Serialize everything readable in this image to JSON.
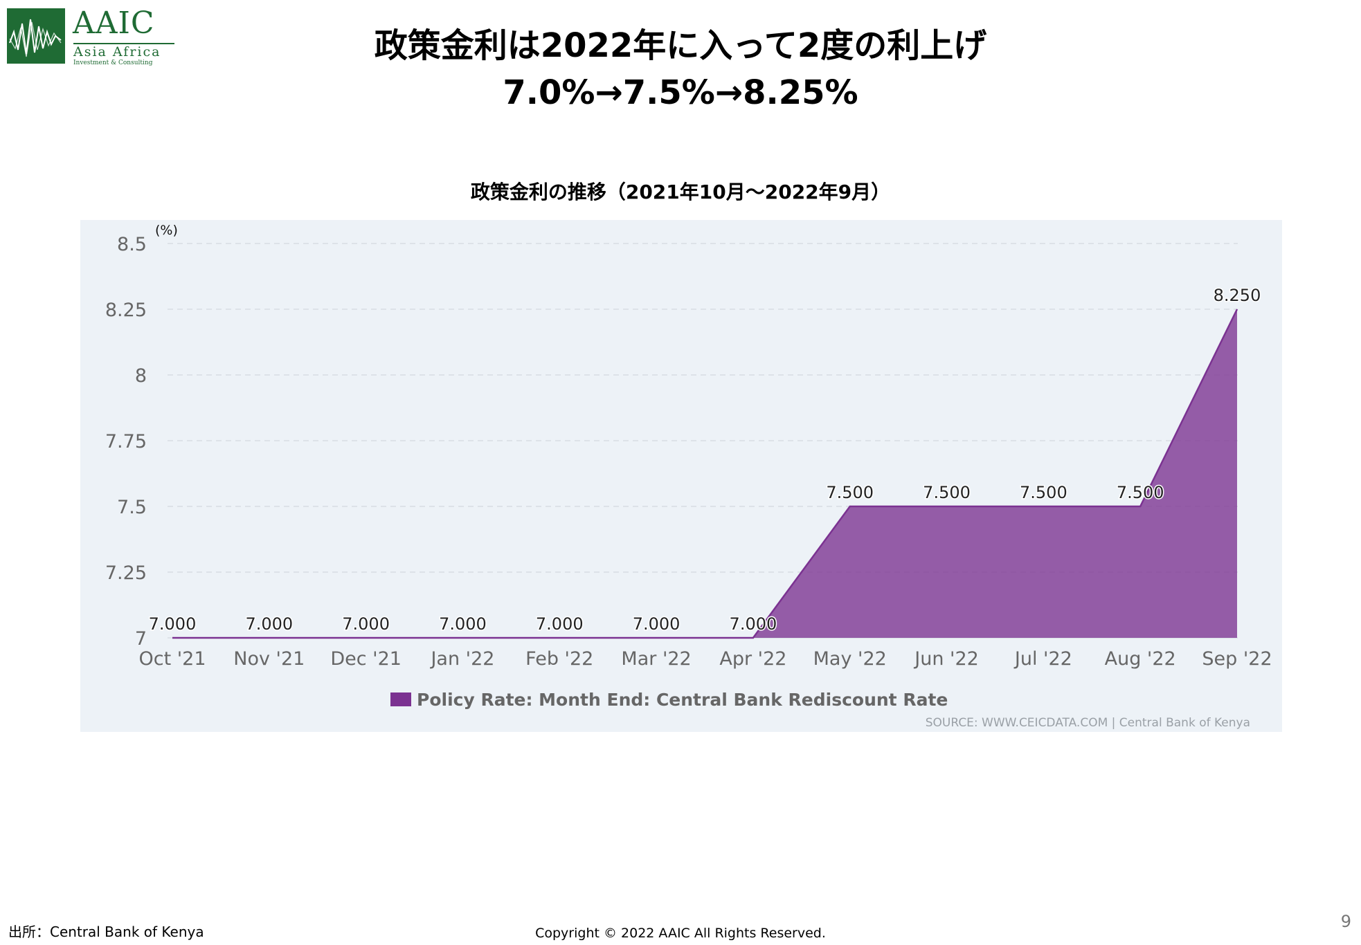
{
  "logo": {
    "name": "AAIC",
    "line1": "Asia Africa",
    "line2": "Investment & Consulting",
    "brand_color": "#1f6b34"
  },
  "slide": {
    "title": "政策金利は2022年に入って2度の利上げ",
    "subtitle": "7.0%→7.5%→8.25%"
  },
  "chart_data": {
    "type": "area",
    "title": "政策金利の推移（2021年10月～2022年9月）",
    "y_unit": "(%)",
    "categories": [
      "Oct '21",
      "Nov '21",
      "Dec '21",
      "Jan '22",
      "Feb '22",
      "Mar '22",
      "Apr '22",
      "May '22",
      "Jun '22",
      "Jul '22",
      "Aug '22",
      "Sep '22"
    ],
    "series": [
      {
        "name": "Policy Rate: Month End: Central Bank Rediscount Rate",
        "values": [
          7.0,
          7.0,
          7.0,
          7.0,
          7.0,
          7.0,
          7.0,
          7.5,
          7.5,
          7.5,
          7.5,
          8.25
        ],
        "labels": [
          "7.000",
          "7.000",
          "7.000",
          "7.000",
          "7.000",
          "7.000",
          "7.000",
          "7.500",
          "7.500",
          "7.500",
          "7.500",
          "8.250"
        ],
        "color": "#7b3291"
      }
    ],
    "ylim": [
      7,
      8.5
    ],
    "yticks": [
      "7",
      "7.25",
      "7.5",
      "7.75",
      "8",
      "8.25",
      "8.5"
    ],
    "grid": true,
    "legend_position": "bottom",
    "source": "SOURCE: WWW.CEICDATA.COM | Central Bank of Kenya",
    "panel_color": "#edf2f7"
  },
  "footer": {
    "source": "出所：Central Bank of Kenya",
    "copyright": "Copyright © 2022 AAIC All Rights Reserved.",
    "page": "9"
  }
}
